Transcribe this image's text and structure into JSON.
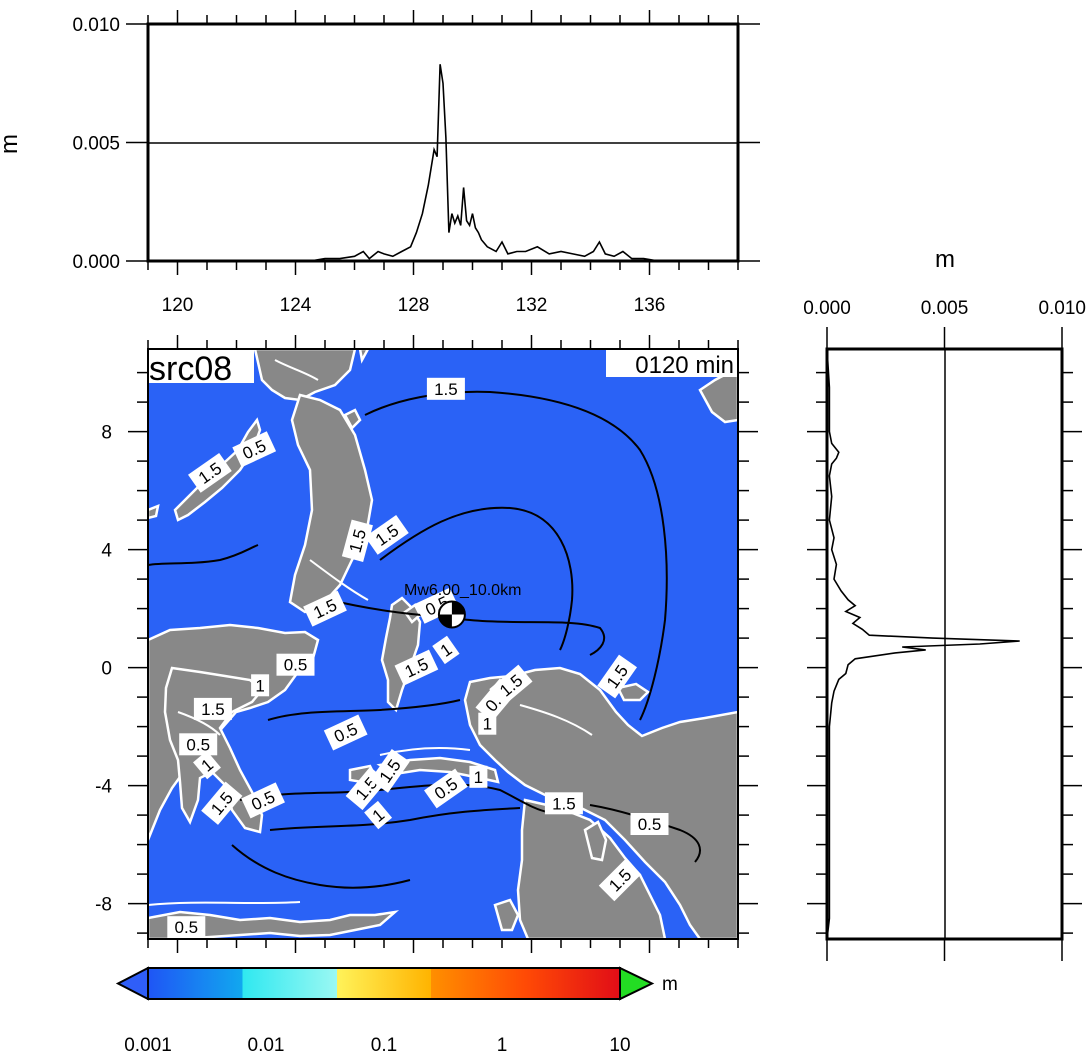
{
  "chart_data": [
    {
      "type": "line",
      "panel": "top",
      "ylabel": "m",
      "xlim": [
        119,
        139
      ],
      "ylim": [
        0,
        0.01
      ],
      "x_ticks": [
        "120",
        "124",
        "128",
        "132",
        "136"
      ],
      "y_ticks": [
        "0.000",
        "0.005",
        "0.010"
      ],
      "grid": "horizontal at 0.005",
      "series": [
        {
          "x": [
            124.5,
            125.0,
            125.5,
            126.0,
            126.3,
            126.5,
            126.8,
            127.0,
            127.3,
            127.6,
            127.9,
            128.1,
            128.3,
            128.5,
            128.7,
            128.8,
            128.9,
            129.0,
            129.1,
            129.2,
            129.3,
            129.4,
            129.5,
            129.6,
            129.7,
            129.8,
            129.9,
            130.0,
            130.1,
            130.2,
            130.3,
            130.5,
            130.8,
            131.0,
            131.2,
            131.5,
            131.8,
            132.2,
            132.6,
            133.0,
            133.4,
            133.8,
            134.1,
            134.3,
            134.5,
            134.8,
            135.1,
            135.4,
            135.8,
            136.3
          ],
          "y": [
            0.0,
            0.0001,
            0.0001,
            0.0002,
            0.0004,
            0.0001,
            0.0004,
            0.0003,
            0.0002,
            0.0004,
            0.0006,
            0.0012,
            0.002,
            0.0032,
            0.0047,
            0.0044,
            0.0083,
            0.0075,
            0.0052,
            0.0012,
            0.002,
            0.0016,
            0.0019,
            0.0015,
            0.0031,
            0.0017,
            0.0015,
            0.002,
            0.0014,
            0.0012,
            0.0009,
            0.0006,
            0.0004,
            0.0008,
            0.0003,
            0.0004,
            0.0004,
            0.0006,
            0.0003,
            0.0004,
            0.0003,
            0.0002,
            0.0004,
            0.0008,
            0.0003,
            0.0002,
            0.0004,
            0.0001,
            0.0001,
            0.0
          ]
        }
      ]
    },
    {
      "type": "line",
      "panel": "right",
      "xlabel": "m",
      "xlim": [
        0,
        0.01
      ],
      "ylim": [
        -9.2,
        10.8
      ],
      "x_ticks": [
        "0.000",
        "0.005",
        "0.010"
      ],
      "grid": "vertical at 0.005",
      "series": [
        {
          "y": [
            9.5,
            8.0,
            7.6,
            7.3,
            7.1,
            6.9,
            6.5,
            5.8,
            5.0,
            4.4,
            4.0,
            3.5,
            3.0,
            2.6,
            2.3,
            2.1,
            1.9,
            1.7,
            1.5,
            1.3,
            1.1,
            1.0,
            0.9,
            0.8,
            0.7,
            0.6,
            0.5,
            0.3,
            0.1,
            -0.2,
            -0.4,
            -0.8,
            -1.2,
            -2.0,
            -2.8,
            -4.0,
            -5.5,
            -7.0,
            -8.5
          ],
          "x": [
            0.0001,
            0.0001,
            0.0002,
            0.0005,
            0.0004,
            0.0002,
            0.0001,
            0.0002,
            0.0001,
            0.0003,
            0.0002,
            0.0004,
            0.0003,
            0.0006,
            0.0009,
            0.0012,
            0.0008,
            0.0014,
            0.0011,
            0.0015,
            0.0018,
            0.0045,
            0.0082,
            0.0065,
            0.0032,
            0.0042,
            0.0029,
            0.0012,
            0.0009,
            0.0008,
            0.0005,
            0.0003,
            0.0002,
            0.0001,
            0.0001,
            0.0001,
            0.0001,
            0.0001,
            0.0001
          ]
        }
      ]
    },
    {
      "type": "heatmap",
      "panel": "map",
      "title": "src08",
      "subtitle": "0120 min",
      "annotation": "Mw6.00_10.0km",
      "xlim": [
        119,
        139
      ],
      "ylim": [
        -9.2,
        10.8
      ],
      "y_ticks": [
        "8",
        "4",
        "0",
        "-4",
        "-8"
      ],
      "epicenter": [
        129.3,
        1.8
      ],
      "contour_levels": [
        0.5,
        1,
        1.5
      ],
      "contour_labels": [
        {
          "text": "1.5",
          "lon": 129.1,
          "lat": 9.45,
          "angle": 0
        },
        {
          "text": "0.5",
          "lon": 122.6,
          "lat": 7.4,
          "angle": -25
        },
        {
          "text": "1.5",
          "lon": 121.1,
          "lat": 6.6,
          "angle": -35
        },
        {
          "text": "1.5",
          "lon": 126.1,
          "lat": 4.3,
          "angle": -75
        },
        {
          "text": "1.5",
          "lon": 127.1,
          "lat": 4.5,
          "angle": -35
        },
        {
          "text": "1.5",
          "lon": 125.0,
          "lat": 2.0,
          "angle": -25
        },
        {
          "text": "0.5",
          "lon": 128.8,
          "lat": 2.1,
          "angle": -25
        },
        {
          "text": "1",
          "lon": 129.1,
          "lat": 0.6,
          "angle": -35
        },
        {
          "text": "1.5",
          "lon": 128.1,
          "lat": 0.0,
          "angle": -25
        },
        {
          "text": "0.5",
          "lon": 124.0,
          "lat": 0.1,
          "angle": 0
        },
        {
          "text": "1",
          "lon": 122.8,
          "lat": -0.6,
          "angle": 0
        },
        {
          "text": "1.5",
          "lon": 121.2,
          "lat": -1.4,
          "angle": 0
        },
        {
          "text": "0.5",
          "lon": 130.8,
          "lat": -1.1,
          "angle": -50
        },
        {
          "text": "1.5",
          "lon": 131.3,
          "lat": -0.6,
          "angle": -40
        },
        {
          "text": "1.5",
          "lon": 134.9,
          "lat": -0.3,
          "angle": -55
        },
        {
          "text": "1",
          "lon": 130.5,
          "lat": -1.9,
          "angle": 0
        },
        {
          "text": "0.5",
          "lon": 125.7,
          "lat": -2.2,
          "angle": -25
        },
        {
          "text": "0.5",
          "lon": 120.7,
          "lat": -2.6,
          "angle": 0
        },
        {
          "text": "1",
          "lon": 121.0,
          "lat": -3.3,
          "angle": -40
        },
        {
          "text": "1.5",
          "lon": 121.5,
          "lat": -4.6,
          "angle": -50
        },
        {
          "text": "0.5",
          "lon": 122.9,
          "lat": -4.5,
          "angle": -25
        },
        {
          "text": "1.5",
          "lon": 126.4,
          "lat": -4.1,
          "angle": -50
        },
        {
          "text": "1.5",
          "lon": 127.2,
          "lat": -3.5,
          "angle": -55
        },
        {
          "text": "1",
          "lon": 126.8,
          "lat": -5.0,
          "angle": -40
        },
        {
          "text": "0.5",
          "lon": 129.1,
          "lat": -4.1,
          "angle": -35
        },
        {
          "text": "1",
          "lon": 130.2,
          "lat": -3.7,
          "angle": 0
        },
        {
          "text": "1.5",
          "lon": 133.1,
          "lat": -4.6,
          "angle": 0
        },
        {
          "text": "0.5",
          "lon": 136.0,
          "lat": -5.3,
          "angle": 0
        },
        {
          "text": "1.5",
          "lon": 135.0,
          "lat": -7.2,
          "angle": -45
        },
        {
          "text": "0.5",
          "lon": 120.3,
          "lat": -8.8,
          "angle": 0
        }
      ]
    }
  ],
  "colorbar": {
    "unit": "m",
    "tick_labels": [
      "0.001",
      "0.01",
      "0.1",
      "1",
      "10"
    ],
    "colors": [
      "#1f55f5",
      "#13b8ee",
      "#47f2f2",
      "#fff35a",
      "#ff9b00",
      "#e71212"
    ],
    "under_color": "#2f5ef8",
    "over_color": "#23dd23"
  },
  "map_colors": {
    "ocean": "#2a62f6",
    "land": "#888888"
  }
}
